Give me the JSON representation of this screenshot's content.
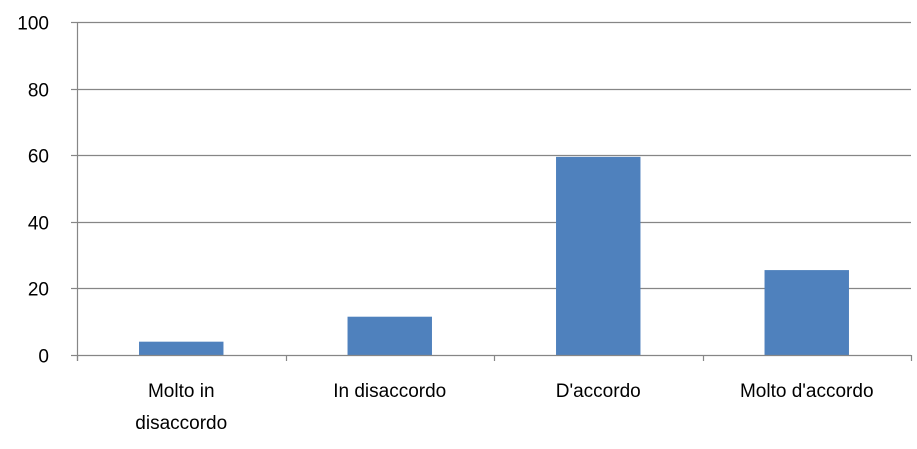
{
  "chart_data": {
    "type": "bar",
    "title": "",
    "xlabel": "",
    "ylabel": "",
    "categories": [
      [
        "Molto in",
        "disaccordo"
      ],
      [
        "In disaccordo"
      ],
      [
        "D'accordo"
      ],
      [
        "Molto d'accordo"
      ]
    ],
    "values": [
      4,
      11.5,
      59.5,
      25.5
    ],
    "ylim": [
      0,
      100
    ],
    "yticks": [
      0,
      20,
      40,
      60,
      80,
      100
    ],
    "grid": true,
    "legend": "none",
    "colors": {
      "bar": "#4f81bd",
      "grid": "#868686",
      "axis": "#868686"
    }
  }
}
